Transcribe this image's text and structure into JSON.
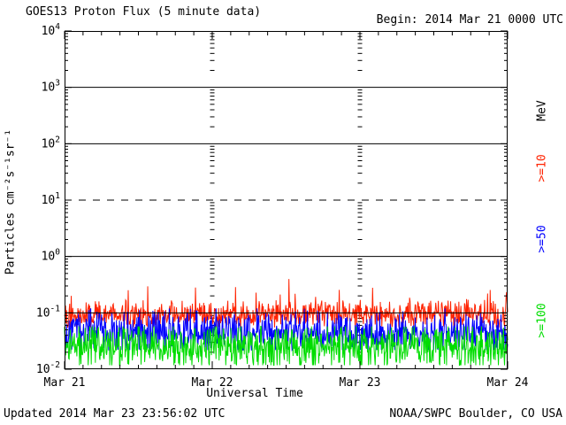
{
  "colors": {
    "background": "#ffffff",
    "axis": "#000000",
    "text": "#000000",
    "p10_red": "#ff2200",
    "p50_blue": "#0000ff",
    "p100_green": "#00dd00"
  },
  "header": {
    "title": "GOES13 Proton Flux (5 minute data)",
    "begin_label": "Begin: 2014 Mar 21 0000 UTC"
  },
  "footer": {
    "updated": "Updated 2014 Mar 23 23:56:02 UTC",
    "source": "NOAA/SWPC Boulder, CO USA"
  },
  "chart_data": {
    "type": "line",
    "title": "GOES13 Proton Flux (5 minute data)",
    "xlabel": "Universal Time",
    "ylabel": "Particles cm⁻²s⁻¹sr⁻¹",
    "x_start": "2014 Mar 21 0000 UTC",
    "x_end": "2014 Mar 24 0000 UTC",
    "x_days": 3,
    "x_tick_labels": [
      "Mar 21",
      "Mar 22",
      "Mar 23",
      "Mar 24"
    ],
    "x_minor_tick_hours": 3,
    "y_scale": "log",
    "ylim": [
      0.01,
      10000
    ],
    "y_tick_exponents": [
      4,
      3,
      2,
      1,
      0,
      -1,
      -2
    ],
    "grid": {
      "solid_line_exponents": [
        3,
        2,
        0,
        -1
      ],
      "dashed_line_exponents": [
        1
      ],
      "vertical_dashed_day_lines": [
        "Mar 22",
        "Mar 23"
      ]
    },
    "legend": {
      "unit_label": "MeV",
      "entries": [
        {
          "label": ">=10",
          "color": "#ff2200"
        },
        {
          "label": ">=50",
          "color": "#0000ff"
        },
        {
          "label": ">=100",
          "color": "#00dd00"
        }
      ]
    },
    "series": [
      {
        "name": ">=10 MeV",
        "color": "#ff2200",
        "n_points": 864,
        "mean_flux_approx": 0.09,
        "typical_range_flux": [
          0.055,
          0.2
        ],
        "spike_max_flux": 0.4,
        "base_log10": -1.03,
        "jitter_log10": 0.18,
        "spike_prob": 0.045,
        "spike_amp_log10": 0.55,
        "clamp_log10": [
          -1.26,
          -0.4
        ],
        "seed": 101,
        "summary": "Noisy 5-min flux hugging the 1e-1 line for all 3 days; no proton event"
      },
      {
        "name": ">=50 MeV",
        "color": "#0000ff",
        "n_points": 864,
        "mean_flux_approx": 0.045,
        "typical_range_flux": [
          0.022,
          0.1
        ],
        "spike_max_flux": 0.12,
        "base_log10": -1.34,
        "jitter_log10": 0.28,
        "spike_prob": 0.02,
        "spike_amp_log10": 0.3,
        "clamp_log10": [
          -1.66,
          -0.92
        ],
        "seed": 202,
        "summary": "Flat noisy band between ~0.02 and ~0.1 for all 3 days"
      },
      {
        "name": ">=100 MeV",
        "color": "#00dd00",
        "n_points": 864,
        "mean_flux_approx": 0.025,
        "typical_range_flux": [
          0.012,
          0.05
        ],
        "spike_max_flux": 0.058,
        "base_log10": -1.6,
        "jitter_log10": 0.3,
        "spike_prob": 0.015,
        "spike_amp_log10": 0.25,
        "clamp_log10": [
          -1.93,
          -1.24
        ],
        "seed": 303,
        "summary": "Flat noisy band between ~0.012 and ~0.05 for all 3 days"
      }
    ]
  }
}
